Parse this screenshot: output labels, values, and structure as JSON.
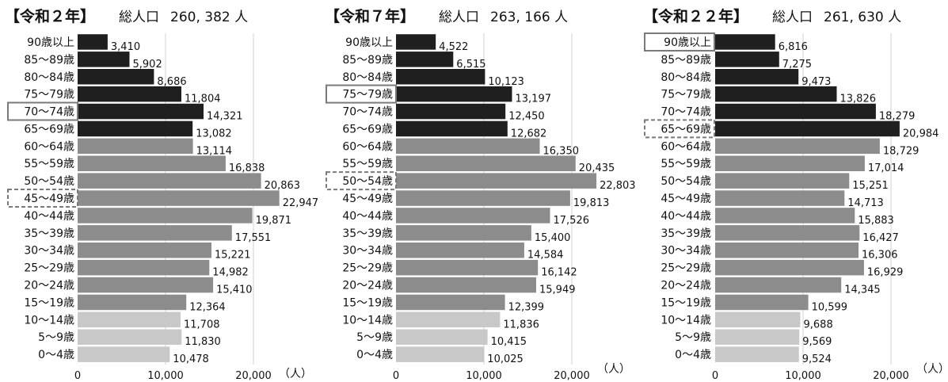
{
  "age_groups": [
    "90歳以上",
    "85～89歳",
    "80～84歳",
    "75～79歳",
    "70～74歳",
    "65～69歳",
    "60～64歳",
    "55～59歳",
    "50～54歳",
    "45～49歳",
    "40～44歳",
    "35～39歳",
    "30～34歳",
    "25～29歳",
    "20～24歳",
    "15～19歳",
    "10～14歳",
    "5～9歳",
    "0～4歳"
  ],
  "total_label": "総人口",
  "unit_label": "（人）",
  "axis_ticks": [
    "0",
    "10,000",
    "20,000"
  ],
  "colors": {
    "elderly": "#1f1f1f",
    "working": "#8c8c8c",
    "youth": "#c8c8c8",
    "highlight_box": "#7a7a7a",
    "grid": "#d0d0d0"
  },
  "panels": [
    {
      "era": "【令和２年】",
      "total_value": "260, 382 人",
      "solid_box": "70～74歳",
      "dashed_box": "45～49歳",
      "value_labels": [
        "3,410",
        "5,902",
        "8,686",
        "11,804",
        "14,321",
        "13,082",
        "13,114",
        "16,838",
        "20,863",
        "22,947",
        "19,871",
        "17,551",
        "15,221",
        "14,982",
        "15,410",
        "12,364",
        "11,708",
        "11,830",
        "10,478"
      ]
    },
    {
      "era": "【令和７年】",
      "total_value": "263, 166 人",
      "solid_box": "75～79歳",
      "dashed_box": "50～54歳",
      "value_labels": [
        "4,522",
        "6,515",
        "10,123",
        "13,197",
        "12,450",
        "12,682",
        "16,350",
        "20,435",
        "22,803",
        "19,813",
        "17,526",
        "15,400",
        "14,584",
        "16,142",
        "15,949",
        "12,399",
        "11,836",
        "10,415",
        "10,025"
      ]
    },
    {
      "era": "【令和２２年】",
      "total_value": "261, 630 人",
      "solid_box": "90歳以上",
      "dashed_box": "65～69歳",
      "value_labels": [
        "6,816",
        "7,275",
        "9,473",
        "13,826",
        "18,279",
        "20,984",
        "18,729",
        "17,014",
        "15,251",
        "14,713",
        "15,883",
        "16,427",
        "16,306",
        "16,929",
        "14,345",
        "10,599",
        "9,688",
        "9,569",
        "9,524"
      ]
    }
  ],
  "chart_data": [
    {
      "type": "bar",
      "orientation": "horizontal",
      "title": "【令和２年】 総人口 260, 382 人",
      "xlim": [
        0,
        25000
      ],
      "xlabel": "（人）",
      "categories": [
        "90歳以上",
        "85～89歳",
        "80～84歳",
        "75～79歳",
        "70～74歳",
        "65～69歳",
        "60～64歳",
        "55～59歳",
        "50～54歳",
        "45～49歳",
        "40～44歳",
        "35～39歳",
        "30～34歳",
        "25～29歳",
        "20～24歳",
        "15～19歳",
        "10～14歳",
        "5～9歳",
        "0～4歳"
      ],
      "values": [
        3410,
        5902,
        8686,
        11804,
        14321,
        13082,
        13114,
        16838,
        20863,
        22947,
        19871,
        17551,
        15221,
        14982,
        15410,
        12364,
        11708,
        11830,
        10478
      ]
    },
    {
      "type": "bar",
      "orientation": "horizontal",
      "title": "【令和７年】 総人口 263, 166 人",
      "xlim": [
        0,
        25000
      ],
      "xlabel": "（人）",
      "categories": [
        "90歳以上",
        "85～89歳",
        "80～84歳",
        "75～79歳",
        "70～74歳",
        "65～69歳",
        "60～64歳",
        "55～59歳",
        "50～54歳",
        "45～49歳",
        "40～44歳",
        "35～39歳",
        "30～34歳",
        "25～29歳",
        "20～24歳",
        "15～19歳",
        "10～14歳",
        "5～9歳",
        "0～4歳"
      ],
      "values": [
        4522,
        6515,
        10123,
        13197,
        12450,
        12682,
        16350,
        20435,
        22803,
        19813,
        17526,
        15400,
        14584,
        16142,
        15949,
        12399,
        11836,
        10415,
        10025
      ]
    },
    {
      "type": "bar",
      "orientation": "horizontal",
      "title": "【令和２２年】 総人口 261, 630 人",
      "xlim": [
        0,
        25000
      ],
      "xlabel": "（人）",
      "categories": [
        "90歳以上",
        "85～89歳",
        "80～84歳",
        "75～79歳",
        "70～74歳",
        "65～69歳",
        "60～64歳",
        "55～59歳",
        "50～54歳",
        "45～49歳",
        "40～44歳",
        "35～39歳",
        "30～34歳",
        "25～29歳",
        "20～24歳",
        "15～19歳",
        "10～14歳",
        "5～9歳",
        "0～4歳"
      ],
      "values": [
        6816,
        7275,
        9473,
        13826,
        18279,
        20984,
        18729,
        17014,
        15251,
        14713,
        15883,
        16427,
        16306,
        16929,
        14345,
        10599,
        9688,
        9569,
        9524
      ]
    }
  ]
}
